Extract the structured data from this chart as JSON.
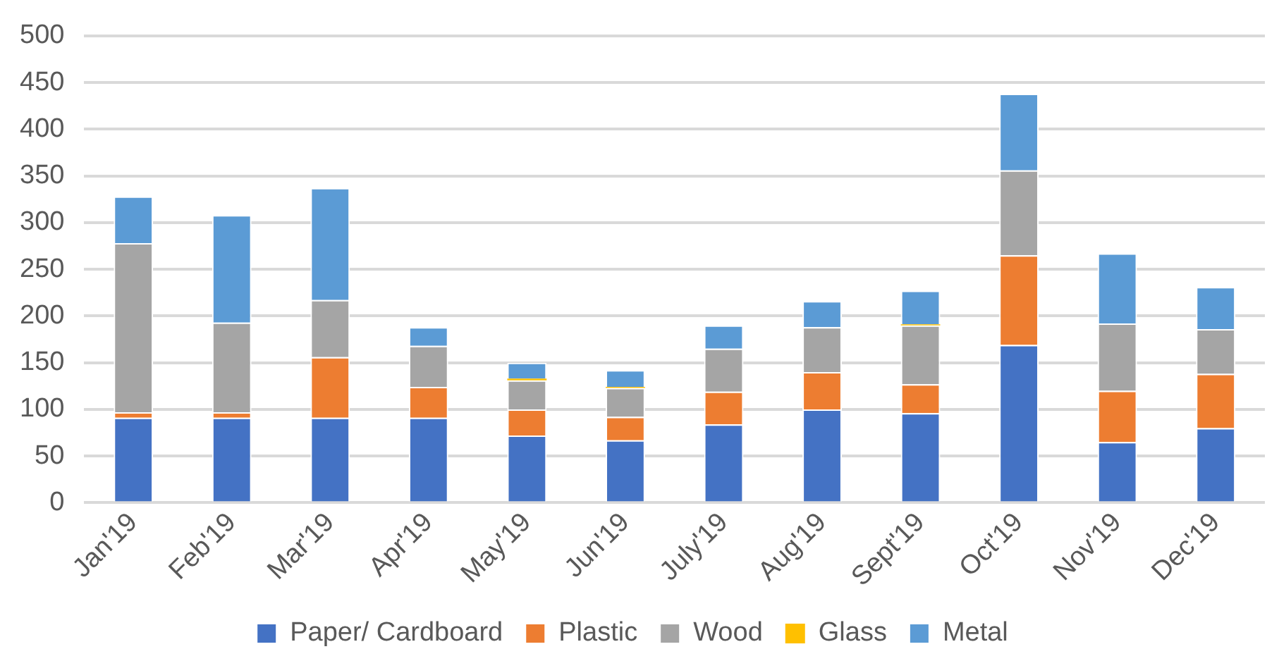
{
  "chart_data": {
    "type": "bar",
    "stacked": true,
    "categories": [
      "Jan'19",
      "Feb'19",
      "Mar'19",
      "Apr'19",
      "May'19",
      "Jun'19",
      "July'19",
      "Aug'19",
      "Sept'19",
      "Oct'19",
      "Nov'19",
      "Dec'19"
    ],
    "series": [
      {
        "name": "Paper/ Cardboard",
        "color": "#4472c4",
        "values": [
          91,
          91,
          91,
          91,
          72,
          67,
          84,
          100,
          96,
          169,
          65,
          80
        ]
      },
      {
        "name": "Plastic",
        "color": "#ed7d31",
        "values": [
          6,
          6,
          65,
          33,
          28,
          25,
          35,
          40,
          31,
          96,
          55,
          58
        ]
      },
      {
        "name": "Wood",
        "color": "#a5a5a5",
        "values": [
          181,
          96,
          61,
          44,
          31,
          31,
          46,
          48,
          63,
          91,
          72,
          48
        ]
      },
      {
        "name": "Glass",
        "color": "#ffc000",
        "values": [
          0,
          0,
          0,
          0,
          2,
          1,
          0,
          0,
          1,
          0,
          0,
          0
        ]
      },
      {
        "name": "Metal",
        "color": "#5b9bd5",
        "values": [
          50,
          115,
          120,
          20,
          17,
          18,
          25,
          28,
          36,
          82,
          75,
          45
        ]
      }
    ],
    "ylim": [
      0,
      500
    ],
    "yticks": [
      0,
      50,
      100,
      150,
      200,
      250,
      300,
      350,
      400,
      450,
      500
    ],
    "grid": "y",
    "legend": "bottom"
  }
}
